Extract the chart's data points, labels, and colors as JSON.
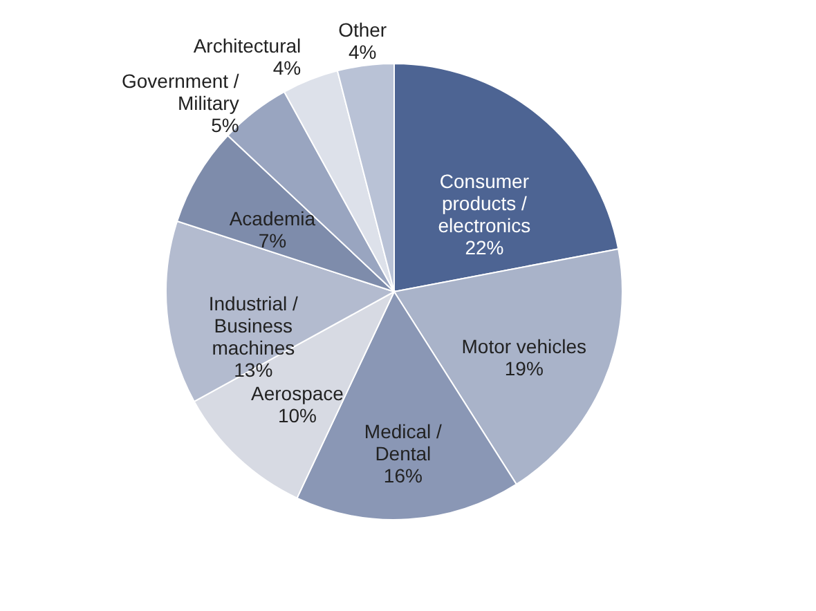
{
  "chart_data": {
    "type": "pie",
    "categories": [
      "Consumer products / electronics",
      "Motor vehicles",
      "Medical / Dental",
      "Aerospace",
      "Industrial / Business machines",
      "Academia",
      "Government / Military",
      "Architectural",
      "Other"
    ],
    "values": [
      22,
      19,
      16,
      10,
      13,
      7,
      5,
      4,
      4
    ],
    "value_labels": [
      "22%",
      "19%",
      "16%",
      "10%",
      "13%",
      "7%",
      "5%",
      "4%",
      "4%"
    ],
    "colors": [
      "#4d6493",
      "#a9b3c9",
      "#8a97b5",
      "#d7dae3",
      "#b3bbcf",
      "#7e8cab",
      "#99a5c0",
      "#dde1ea",
      "#b9c2d6"
    ],
    "legend": false
  }
}
